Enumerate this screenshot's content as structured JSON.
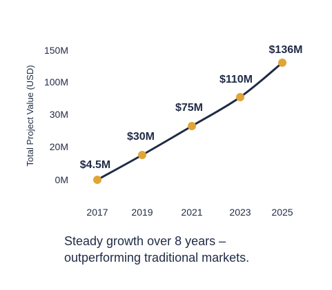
{
  "chart_data": {
    "type": "line",
    "ylabel": "Total Project Value (USD)",
    "categories": [
      "2017",
      "2019",
      "2021",
      "2023",
      "2025"
    ],
    "y_tick_labels": [
      "0M",
      "20M",
      "30M",
      "100M",
      "150M"
    ],
    "series": [
      {
        "values": [
          4.5,
          30,
          75,
          110,
          136
        ]
      }
    ],
    "data_labels": [
      "$4.5M",
      "$30M",
      "$75M",
      "$110M",
      "$136M"
    ],
    "grid": false,
    "colors": {
      "line": "#1f2a44",
      "marker": "#e0a536",
      "text": "#1f2a44"
    }
  },
  "caption": "Steady growth over 8 years –\noutperforming traditional markets."
}
